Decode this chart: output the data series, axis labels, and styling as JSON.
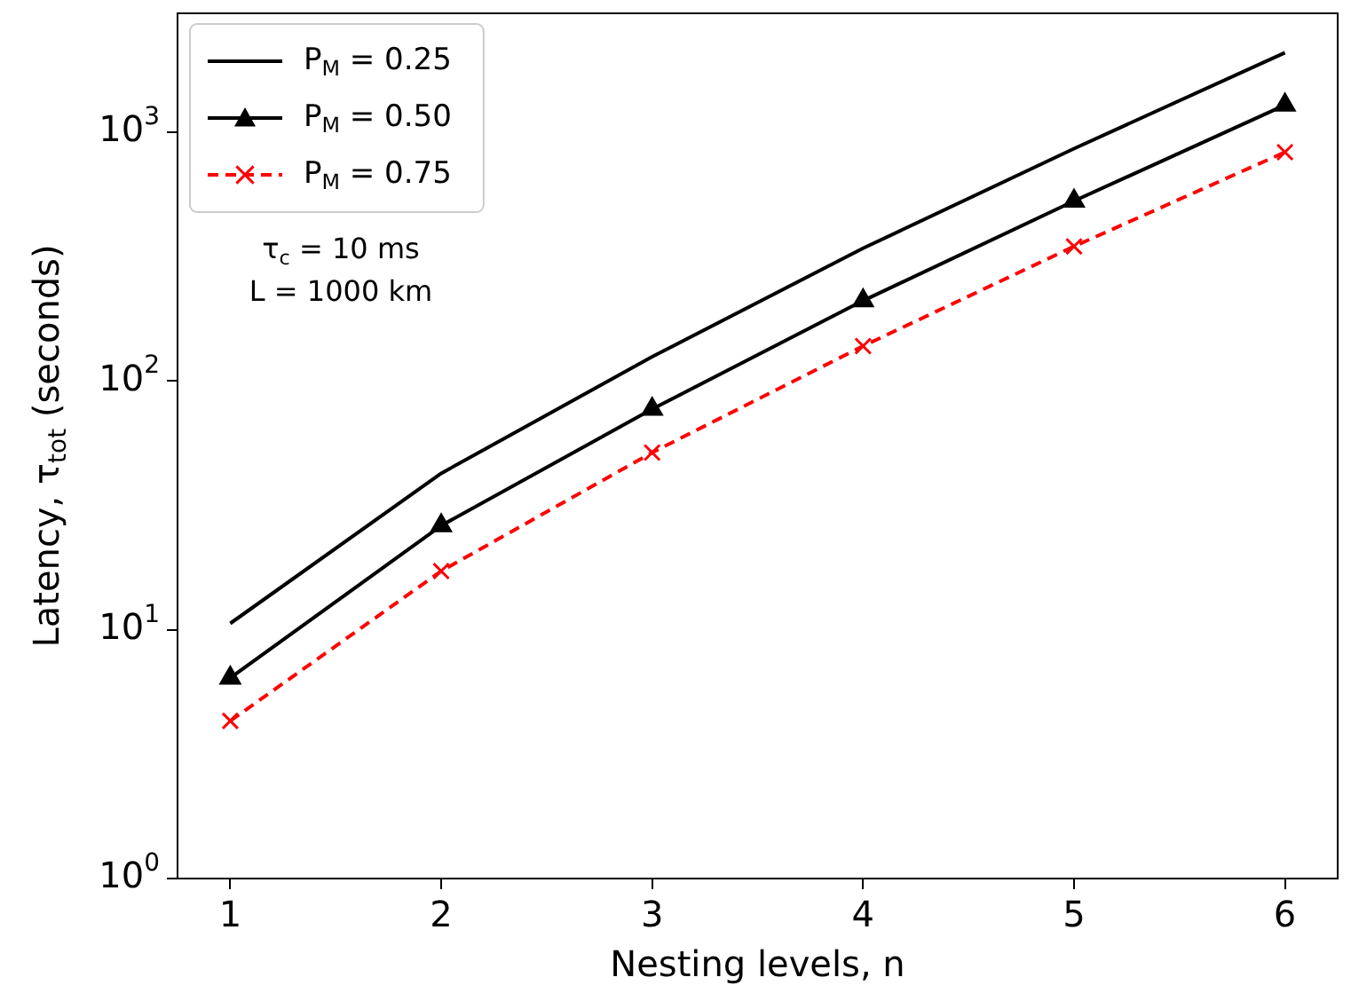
{
  "chart_data": {
    "type": "line",
    "xlabel": "Nesting levels, n",
    "ylabel": "Latency, τ$_{tot}$ (seconds)",
    "x": [
      1,
      2,
      3,
      4,
      5,
      6
    ],
    "series": [
      {
        "name": "P$_{M}$ = 0.25",
        "color": "#000000",
        "values": [
          10.6,
          42.5,
          125,
          341,
          858,
          2085
        ],
        "marker": "none",
        "line_style": "solid"
      },
      {
        "name": "P$_{M}$ = 0.50",
        "color": "#000000",
        "values": [
          6.4,
          26.2,
          77,
          210,
          528,
          1284
        ],
        "marker": "triangle",
        "line_style": "solid"
      },
      {
        "name": "P$_{M}$ = 0.75",
        "color": "#ff0000",
        "values": [
          4.3,
          17.2,
          51.5,
          138,
          347,
          830
        ],
        "marker": "cross",
        "line_style": "dashed"
      }
    ],
    "annotations": [
      "τ$_{c}$ = 10 ms",
      "L = 1000 km"
    ],
    "log": "y",
    "xlim": [
      0.75,
      6.25
    ],
    "ylim": [
      1,
      3000
    ],
    "xticks": [
      1,
      2,
      3,
      4,
      5,
      6
    ],
    "yticks": [
      {
        "value": 1,
        "label": "10$^{0}$"
      },
      {
        "value": 10,
        "label": "10$^{1}$"
      },
      {
        "value": 100,
        "label": "10$^{2}$"
      },
      {
        "value": 1000,
        "label": "10$^{3}$"
      }
    ],
    "grid": false,
    "legend": "top left"
  }
}
